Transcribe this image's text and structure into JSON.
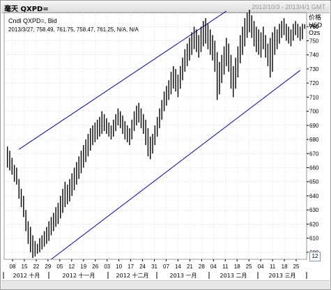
{
  "window": {
    "title": "毫天 QXPD=",
    "date_range": "2012/10/3 - 2013/4/1 GMT"
  },
  "info": {
    "line1": "Cndl QXPD=, Bid",
    "line2": "2013/3/27, 758.49, 761.75, 758.47, 761.25, N/A, N/A"
  },
  "axis": {
    "unit_lines": [
      "价格",
      "USD",
      "Ozs"
    ],
    "scroll_label": "12"
  },
  "colors": {
    "background": "#ffffff",
    "candle": "#000000",
    "channel": "#0000cc",
    "grid": "#c0c0c0"
  },
  "chart_data": {
    "type": "candlestick",
    "title": "",
    "ylim": [
      595,
      770
    ],
    "y_ticks": [
      600,
      610,
      620,
      630,
      640,
      650,
      660,
      670,
      680,
      690,
      700,
      710,
      720,
      730,
      740,
      750,
      760
    ],
    "y_tick_labels": [
      "600",
      "610",
      "620",
      "630",
      "640",
      "650",
      "660",
      "670",
      "680",
      "690",
      "700",
      "710",
      "720",
      "730",
      "740",
      "750",
      "760"
    ],
    "current_price_label": "760",
    "x_day_ticks": [
      "08",
      "15",
      "22",
      "29",
      "05",
      "12",
      "19",
      "26",
      "03",
      "10",
      "17",
      "24",
      "31",
      "07",
      "14",
      "21",
      "28",
      "04",
      "11",
      "18",
      "25",
      "04",
      "11",
      "18",
      "25"
    ],
    "x_month_labels": [
      "2012 十月",
      "2012 十一月",
      "2012 十二月",
      "2013 一月",
      "2013 二月",
      "2013 三月"
    ],
    "grid": true,
    "trend_channel": {
      "upper": [
        [
          5,
          673
        ],
        [
          95,
          771
        ]
      ],
      "lower": [
        [
          19,
          595
        ],
        [
          127,
          729
        ]
      ]
    },
    "bars": [
      {
        "h": 675,
        "l": 660
      },
      {
        "h": 672,
        "l": 658
      },
      {
        "h": 667,
        "l": 655
      },
      {
        "h": 662,
        "l": 650
      },
      {
        "h": 660,
        "l": 648
      },
      {
        "h": 652,
        "l": 638
      },
      {
        "h": 645,
        "l": 632
      },
      {
        "h": 640,
        "l": 625
      },
      {
        "h": 630,
        "l": 615
      },
      {
        "h": 622,
        "l": 606
      },
      {
        "h": 618,
        "l": 600
      },
      {
        "h": 612,
        "l": 596
      },
      {
        "h": 608,
        "l": 597
      },
      {
        "h": 606,
        "l": 599
      },
      {
        "h": 610,
        "l": 600
      },
      {
        "h": 612,
        "l": 602
      },
      {
        "h": 615,
        "l": 604
      },
      {
        "h": 618,
        "l": 606
      },
      {
        "h": 622,
        "l": 608
      },
      {
        "h": 625,
        "l": 612
      },
      {
        "h": 628,
        "l": 615
      },
      {
        "h": 632,
        "l": 618
      },
      {
        "h": 635,
        "l": 620
      },
      {
        "h": 640,
        "l": 624
      },
      {
        "h": 645,
        "l": 628
      },
      {
        "h": 650,
        "l": 632
      },
      {
        "h": 648,
        "l": 634
      },
      {
        "h": 652,
        "l": 636
      },
      {
        "h": 656,
        "l": 640
      },
      {
        "h": 660,
        "l": 644
      },
      {
        "h": 664,
        "l": 648
      },
      {
        "h": 668,
        "l": 652
      },
      {
        "h": 672,
        "l": 656
      },
      {
        "h": 676,
        "l": 660
      },
      {
        "h": 680,
        "l": 664
      },
      {
        "h": 684,
        "l": 668
      },
      {
        "h": 688,
        "l": 672
      },
      {
        "h": 690,
        "l": 676
      },
      {
        "h": 692,
        "l": 678
      },
      {
        "h": 694,
        "l": 680
      },
      {
        "h": 696,
        "l": 682
      },
      {
        "h": 700,
        "l": 684
      },
      {
        "h": 698,
        "l": 686
      },
      {
        "h": 695,
        "l": 684
      },
      {
        "h": 692,
        "l": 682
      },
      {
        "h": 690,
        "l": 680
      },
      {
        "h": 694,
        "l": 682
      },
      {
        "h": 698,
        "l": 686
      },
      {
        "h": 702,
        "l": 690
      },
      {
        "h": 700,
        "l": 688
      },
      {
        "h": 697,
        "l": 684
      },
      {
        "h": 693,
        "l": 680
      },
      {
        "h": 690,
        "l": 678
      },
      {
        "h": 688,
        "l": 676
      },
      {
        "h": 694,
        "l": 680
      },
      {
        "h": 700,
        "l": 686
      },
      {
        "h": 704,
        "l": 690
      },
      {
        "h": 706,
        "l": 692
      },
      {
        "h": 702,
        "l": 688
      },
      {
        "h": 698,
        "l": 684
      },
      {
        "h": 694,
        "l": 676
      },
      {
        "h": 688,
        "l": 668
      },
      {
        "h": 682,
        "l": 666
      },
      {
        "h": 684,
        "l": 670
      },
      {
        "h": 690,
        "l": 676
      },
      {
        "h": 696,
        "l": 682
      },
      {
        "h": 702,
        "l": 688
      },
      {
        "h": 708,
        "l": 694
      },
      {
        "h": 714,
        "l": 700
      },
      {
        "h": 718,
        "l": 704
      },
      {
        "h": 722,
        "l": 708
      },
      {
        "h": 728,
        "l": 712
      },
      {
        "h": 732,
        "l": 716
      },
      {
        "h": 730,
        "l": 714
      },
      {
        "h": 726,
        "l": 710
      },
      {
        "h": 732,
        "l": 716
      },
      {
        "h": 738,
        "l": 722
      },
      {
        "h": 744,
        "l": 728
      },
      {
        "h": 748,
        "l": 732
      },
      {
        "h": 752,
        "l": 736
      },
      {
        "h": 756,
        "l": 740
      },
      {
        "h": 760,
        "l": 744
      },
      {
        "h": 758,
        "l": 742
      },
      {
        "h": 754,
        "l": 738
      },
      {
        "h": 760,
        "l": 742
      },
      {
        "h": 764,
        "l": 746
      },
      {
        "h": 766,
        "l": 748
      },
      {
        "h": 762,
        "l": 744
      },
      {
        "h": 758,
        "l": 740
      },
      {
        "h": 754,
        "l": 736
      },
      {
        "h": 750,
        "l": 728
      },
      {
        "h": 742,
        "l": 708
      },
      {
        "h": 735,
        "l": 712
      },
      {
        "h": 740,
        "l": 720
      },
      {
        "h": 746,
        "l": 726
      },
      {
        "h": 752,
        "l": 732
      },
      {
        "h": 748,
        "l": 728
      },
      {
        "h": 740,
        "l": 716
      },
      {
        "h": 732,
        "l": 710
      },
      {
        "h": 738,
        "l": 716
      },
      {
        "h": 746,
        "l": 724
      },
      {
        "h": 754,
        "l": 734
      },
      {
        "h": 760,
        "l": 740
      },
      {
        "h": 766,
        "l": 746
      },
      {
        "h": 770,
        "l": 752
      },
      {
        "h": 772,
        "l": 756
      },
      {
        "h": 768,
        "l": 752
      },
      {
        "h": 764,
        "l": 746
      },
      {
        "h": 760,
        "l": 742
      },
      {
        "h": 758,
        "l": 740
      },
      {
        "h": 756,
        "l": 738
      },
      {
        "h": 760,
        "l": 744
      },
      {
        "h": 754,
        "l": 738
      },
      {
        "h": 748,
        "l": 732
      },
      {
        "h": 752,
        "l": 724
      },
      {
        "h": 756,
        "l": 728
      },
      {
        "h": 760,
        "l": 740
      },
      {
        "h": 758,
        "l": 744
      },
      {
        "h": 762,
        "l": 748
      },
      {
        "h": 764,
        "l": 752
      },
      {
        "h": 766,
        "l": 754
      },
      {
        "h": 762,
        "l": 750
      },
      {
        "h": 760,
        "l": 748
      },
      {
        "h": 758,
        "l": 746
      },
      {
        "h": 762,
        "l": 750
      },
      {
        "h": 764,
        "l": 754
      },
      {
        "h": 762,
        "l": 752
      },
      {
        "h": 760,
        "l": 750
      },
      {
        "h": 762,
        "l": 751
      },
      {
        "h": 761.75,
        "l": 758.47
      }
    ]
  }
}
